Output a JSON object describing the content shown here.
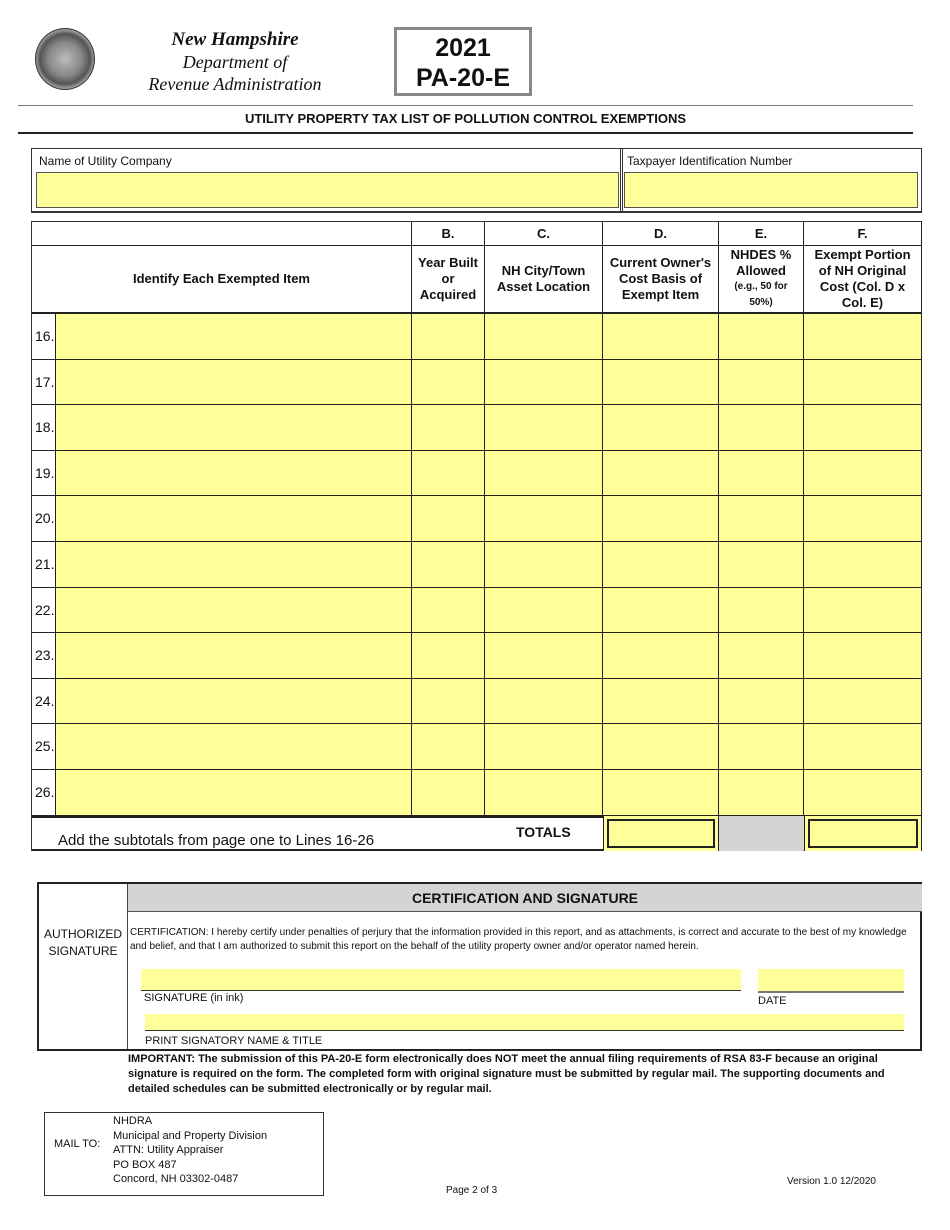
{
  "header": {
    "agency_line1": "New Hampshire",
    "agency_line2": "Department of",
    "agency_line3": "Revenue Administration",
    "year": "2021",
    "form_code": "PA-20-E",
    "seal_icon": "nh-state-seal"
  },
  "title": "UTILITY PROPERTY TAX LIST OF POLLUTION CONTROL EXEMPTIONS",
  "company": {
    "name_label": "Name of Utility Company",
    "name_value": "",
    "tin_label": "Taxpayer Identification Number",
    "tin_value": ""
  },
  "table": {
    "letters": [
      "",
      "B.",
      "C.",
      "D.",
      "E.",
      "F."
    ],
    "headers": [
      "Identify Each Exempted Item",
      "Year Built or Acquired",
      "NH City/Town Asset Location",
      "Current Owner's Cost Basis of Exempt Item",
      "NHDES % Allowed",
      "Exempt Portion of NH Original Cost (Col. D x Col. E)"
    ],
    "e_note": "(e.g., 50 for 50%)",
    "rows": [
      "16.",
      "17.",
      "18.",
      "19.",
      "20.",
      "21.",
      "22.",
      "23.",
      "24.",
      "25.",
      "26."
    ],
    "subtotal_note": "Add the subtotals from page one to Lines 16-26",
    "totals_label": "TOTALS"
  },
  "certification": {
    "side_label": "AUTHORIZED SIGNATURE",
    "heading": "CERTIFICATION AND SIGNATURE",
    "text": "CERTIFICATION: I hereby certify under penalties of perjury that the information provided in this report, and as attachments, is correct and accurate to the best of my knowledge and belief, and that I am authorized to submit this report on the behalf of the utility property owner and/or operator named herein.",
    "signature_label": "SIGNATURE (in ink)",
    "date_label": "DATE",
    "print_label": "PRINT SIGNATORY NAME & TITLE"
  },
  "important": "IMPORTANT: The submission of this PA-20-E form electronically does NOT meet the annual filing requirements of RSA 83-F because an original signature is required on the form. The completed form with original signature must be submitted by regular mail. The supporting documents and detailed schedules can be submitted electronically or by regular mail.",
  "mail": {
    "label": "MAIL TO:",
    "lines": [
      "NHDRA",
      "Municipal and Property Division",
      "ATTN: Utility Appraiser",
      "PO BOX 487",
      "Concord, NH 03302-0487"
    ]
  },
  "footer": {
    "page": "Page 2 of 3",
    "version": "Version 1.0 12/2020"
  },
  "colors": {
    "fill": "#ffff99",
    "gray": "#d4d4d4"
  }
}
